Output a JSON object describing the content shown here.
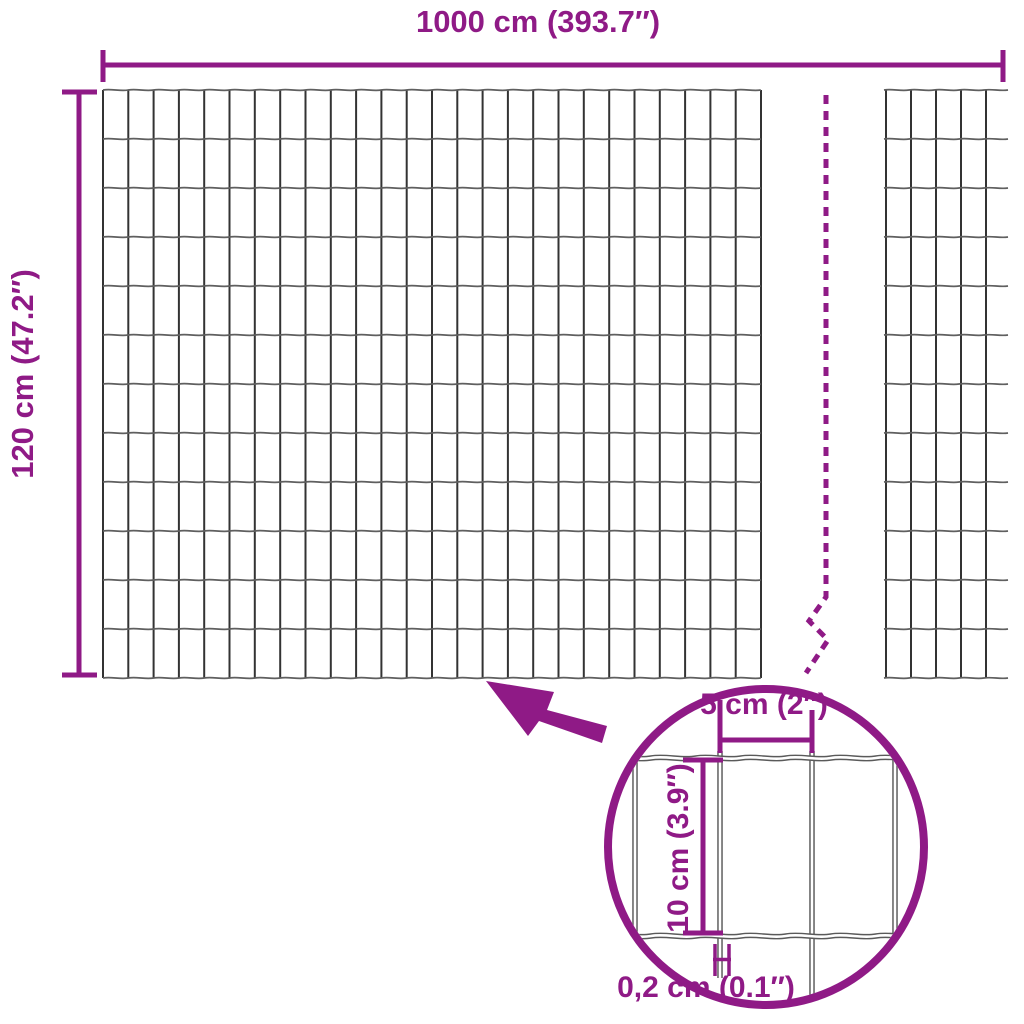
{
  "diagram": {
    "width_label": "1000 cm (393.7″)",
    "height_label": "120 cm (47.2″)",
    "detail": {
      "cell_width_label": "5 cm (2″)",
      "cell_height_label": "10 cm (3.9″)",
      "wire_thickness_label": "0,2 cm (0.1″)"
    }
  },
  "colors": {
    "accent": "#8f1a86",
    "wire_dark": "#333333",
    "wire_mid": "#5f5f5f",
    "wire_outline": "#5a5a5a",
    "background": "#ffffff"
  }
}
